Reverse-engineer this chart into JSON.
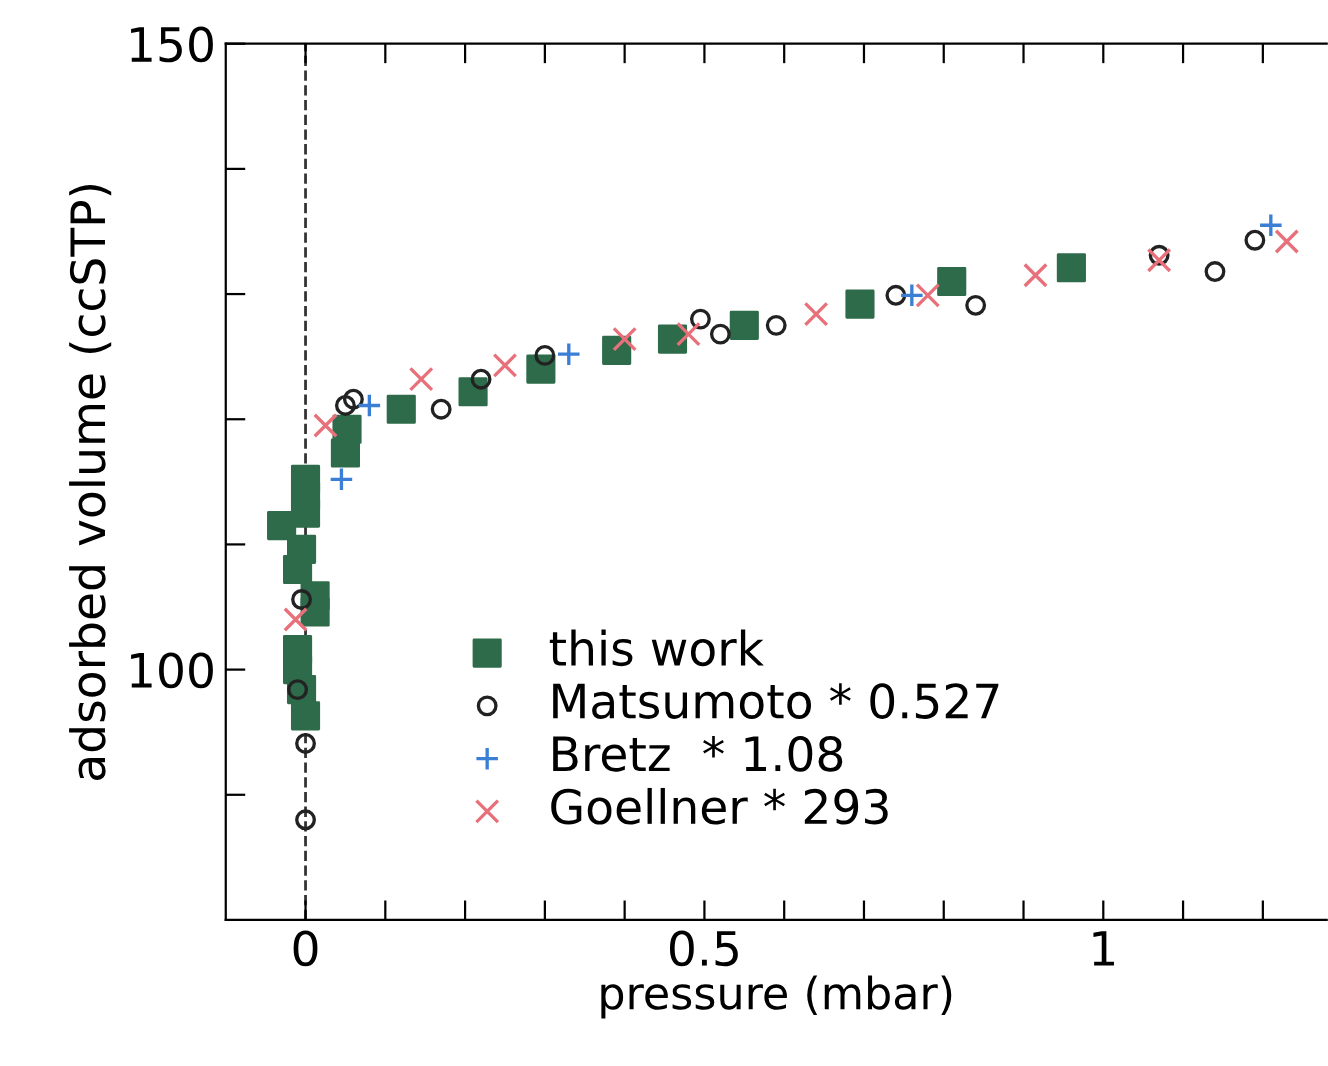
{
  "chart_data": {
    "type": "scatter",
    "xlabel": "pressure (mbar)",
    "ylabel": "adsorbed volume (ccSTP)",
    "xlim": [
      -0.1,
      1.28
    ],
    "ylim": [
      80,
      150
    ],
    "xticks": [
      0,
      {
        "value": 0.1,
        "label": null
      },
      {
        "value": 0.2,
        "label": null
      },
      {
        "value": 0.3,
        "label": null
      },
      {
        "value": 0.4,
        "label": null
      },
      0.5,
      {
        "value": 0.6,
        "label": null
      },
      {
        "value": 0.7,
        "label": null
      },
      {
        "value": 0.8,
        "label": null
      },
      {
        "value": 0.9,
        "label": null
      },
      1,
      {
        "value": 1.1,
        "label": null
      },
      {
        "value": 1.2,
        "label": null
      }
    ],
    "yticks": [
      {
        "value": 90,
        "label": null
      },
      100,
      {
        "value": 110,
        "label": null
      },
      {
        "value": 120,
        "label": null
      },
      {
        "value": 130,
        "label": null
      },
      {
        "value": 140,
        "label": null
      },
      150
    ],
    "grid": false,
    "legend": "bottom",
    "ref_lines": [
      {
        "axis": "x",
        "value": 0,
        "line_style": "dashed",
        "color": "#333333"
      }
    ],
    "series": [
      {
        "name": "this work",
        "color": "#2e6b4a",
        "marker": "square",
        "x": [
          -0.03,
          -0.01,
          0,
          0,
          0,
          0.012,
          0.012,
          -0.005,
          -0.01,
          -0.01,
          -0.005,
          0,
          0.05,
          0.052,
          0.12,
          0.21,
          0.295,
          0.39,
          0.46,
          0.55,
          0.695,
          0.81,
          0.96
        ],
        "values": [
          111.5,
          108,
          115.2,
          113.9,
          112.5,
          105.9,
          104.6,
          109.6,
          101.6,
          100,
          98.4,
          96.3,
          117.3,
          119.2,
          120.8,
          122.2,
          124,
          125.5,
          126.4,
          127.5,
          129.2,
          131,
          132.1
        ]
      },
      {
        "name": "Matsumoto * 0.527",
        "color": "#222222",
        "marker": "circle",
        "x": [
          0,
          0,
          -0.01,
          -0.005,
          0.05,
          0.06,
          0.17,
          0.22,
          0.3,
          0.495,
          0.52,
          0.59,
          0.74,
          0.84,
          1.07,
          1.14,
          1.19
        ],
        "values": [
          88,
          94.1,
          98.4,
          105.6,
          121.1,
          121.6,
          120.8,
          123.2,
          125.1,
          128,
          126.8,
          127.5,
          129.9,
          129.1,
          133.1,
          131.8,
          134.3
        ]
      },
      {
        "name": "Bretz  * 1.08",
        "color": "#3a7fd5",
        "marker": "plus",
        "x": [
          0.045,
          0.08,
          0.33,
          0.76,
          1.21
        ],
        "values": [
          115.2,
          121.1,
          125.2,
          129.9,
          135.5
        ]
      },
      {
        "name": "Goellner * 293",
        "color": "#e8707a",
        "marker": "cross",
        "x": [
          -0.0125,
          0.025,
          0.145,
          0.25,
          0.4,
          0.48,
          0.64,
          0.78,
          0.915,
          1.07,
          1.23
        ],
        "values": [
          104,
          119.5,
          123.2,
          124.3,
          126.4,
          126.8,
          128.4,
          129.9,
          131.5,
          132.7,
          134.2
        ]
      }
    ]
  }
}
